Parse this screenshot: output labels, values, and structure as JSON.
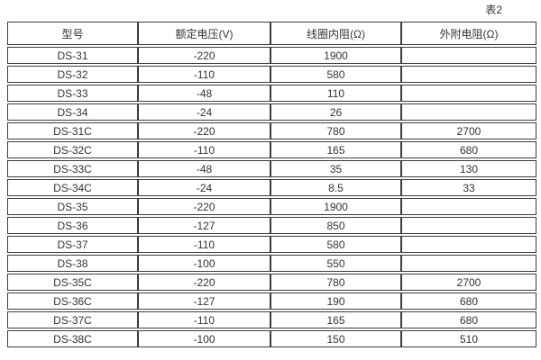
{
  "page_label": "表2",
  "colors": {
    "background": "#ffffff",
    "border": "#3c3c3c",
    "text": "#333333"
  },
  "table": {
    "columns": [
      "型号",
      "额定电压(V)",
      "线圈内阻(Ω)",
      "外附电阻(Ω)"
    ],
    "rows": [
      [
        "DS-31",
        "-220",
        "1900",
        ""
      ],
      [
        "DS-32",
        "-110",
        "580",
        ""
      ],
      [
        "DS-33",
        "-48",
        "110",
        ""
      ],
      [
        "DS-34",
        "-24",
        "26",
        ""
      ],
      [
        "DS-31C",
        "-220",
        "780",
        "2700"
      ],
      [
        "DS-32C",
        "-110",
        "165",
        "680"
      ],
      [
        "DS-33C",
        "-48",
        "35",
        "130"
      ],
      [
        "DS-34C",
        "-24",
        "8.5",
        "33"
      ],
      [
        "DS-35",
        "-220",
        "1900",
        ""
      ],
      [
        "DS-36",
        "-127",
        "850",
        ""
      ],
      [
        "DS-37",
        "-110",
        "580",
        ""
      ],
      [
        "DS-38",
        "-100",
        "550",
        ""
      ],
      [
        "DS-35C",
        "-220",
        "780",
        "2700"
      ],
      [
        "DS-36C",
        "-127",
        "190",
        "680"
      ],
      [
        "DS-37C",
        "-110",
        "165",
        "680"
      ],
      [
        "DS-38C",
        "-100",
        "150",
        "510"
      ]
    ]
  }
}
